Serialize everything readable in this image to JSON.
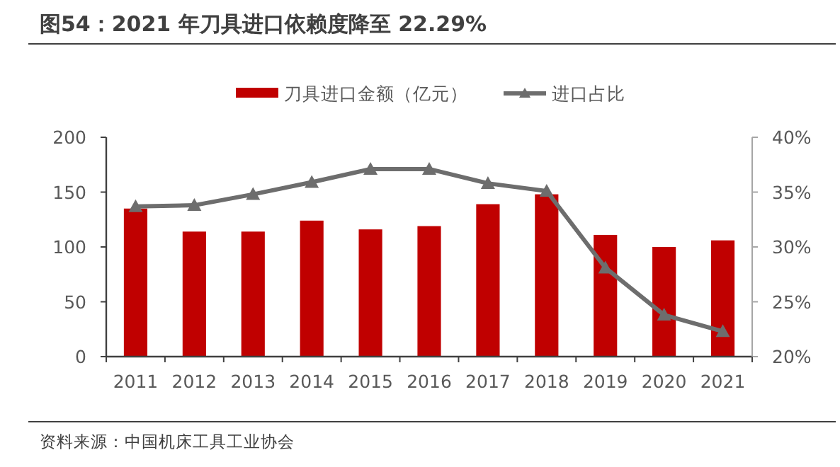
{
  "chart_data": {
    "type": "bar",
    "title": "图54：2021 年刀具进口依赖度降至 22.29%",
    "categories": [
      "2011",
      "2012",
      "2013",
      "2014",
      "2015",
      "2016",
      "2017",
      "2018",
      "2019",
      "2020",
      "2021"
    ],
    "series": [
      {
        "name": "刀具进口金额（亿元）",
        "color": "#c00000",
        "values": [
          135,
          114,
          114,
          124,
          116,
          119,
          139,
          148,
          111,
          100,
          106
        ]
      },
      {
        "name": "进口占比",
        "type": "line",
        "axis": "y2",
        "color": "#6d6d6d",
        "marker": "triangle",
        "values": [
          33.7,
          33.8,
          34.8,
          35.9,
          37.1,
          37.1,
          35.8,
          35.1,
          28.1,
          23.8,
          22.3
        ]
      }
    ],
    "ylim": [
      0,
      200
    ],
    "yticks": [
      0,
      50,
      100,
      150,
      200
    ],
    "y2lim": [
      20,
      40
    ],
    "y2ticks": [
      {
        "value": 20,
        "label": "20%"
      },
      {
        "value": 25,
        "label": "25%"
      },
      {
        "value": 30,
        "label": "30%"
      },
      {
        "value": 35,
        "label": "35%"
      },
      {
        "value": 40,
        "label": "40%"
      }
    ],
    "legend": "top",
    "grid": false,
    "annotations": [
      "资料来源：中国机床工具工业协会"
    ]
  }
}
